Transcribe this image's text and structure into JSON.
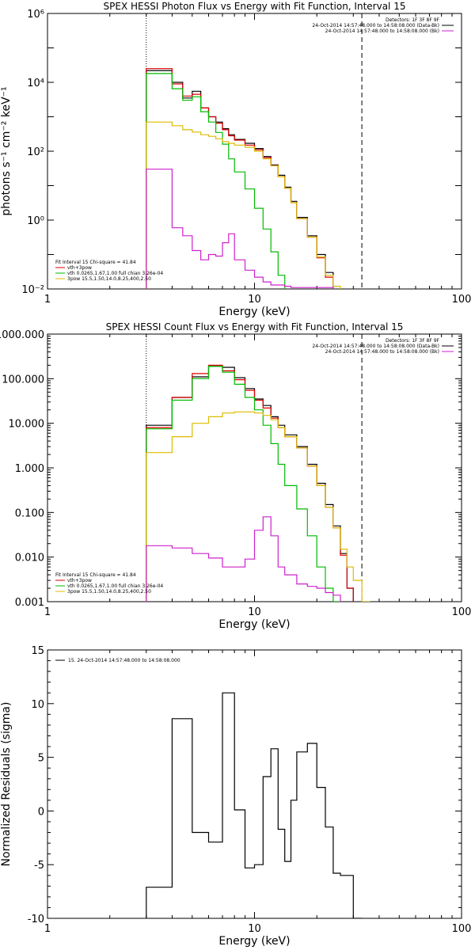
{
  "chart_data": [
    {
      "type": "line",
      "title": "SPEX HESSI Photon Flux vs Energy with Fit Function, Interval 15",
      "xlabel": "Energy (keV)",
      "ylabel": "photons s⁻¹ cm⁻² keV⁻¹",
      "xscale": "log",
      "yscale": "log",
      "xlim": [
        1,
        100
      ],
      "ylim": [
        0.01,
        1000000
      ],
      "xticks": [
        1,
        10,
        100
      ],
      "xtick_labels": [
        "1",
        "10",
        "100"
      ],
      "yticks": [
        0.01,
        1,
        100,
        10000,
        1000000
      ],
      "ytick_labels": [
        "10⁻²",
        "10⁰",
        "10²",
        "10⁴",
        "10⁶"
      ],
      "vlines": [
        {
          "x": 3.0,
          "style": "dotted"
        },
        {
          "x": 33.0,
          "style": "dashed"
        }
      ],
      "legend_top": {
        "header": "Detectors: 1F 3F 8F 9F",
        "items": [
          {
            "text": "24-Oct-2014 14:57:48.000 to 14:58:08.000 (Data-Bk)",
            "color": "#000000"
          },
          {
            "text": "24-Oct-2014 14:57:48.000 to 14:58:08.000 (Bk)",
            "color": "#cc22cc"
          }
        ]
      },
      "legend_bottom": {
        "header": "Fit Interval 15   Chi-square = 41.84",
        "items": [
          {
            "text": "vth+3pow",
            "color": "#dd0000"
          },
          {
            "text": "vth 0.0265,1.67,1.00  full chian 3.26e-04",
            "color": "#00bb00"
          },
          {
            "text": "3pow 15.5,1.50,14.0,8.25,400,2.50",
            "color": "#ddbb00"
          }
        ]
      },
      "edges": [
        3.0,
        3.5,
        4.0,
        4.5,
        5.0,
        5.5,
        6.0,
        6.5,
        7.0,
        7.5,
        8.0,
        9.0,
        10.0,
        11.0,
        12.0,
        13.0,
        14.0,
        15.0,
        16.0,
        18.0,
        20.0,
        22.0,
        24.0,
        26.0,
        28.0,
        30.0,
        33.0,
        36.0,
        40.0,
        45.0,
        50.0
      ],
      "series": [
        {
          "color": "#000000",
          "values": [
            22000,
            22000,
            10000,
            3500,
            5500,
            1800,
            1000,
            700,
            450,
            300,
            220,
            170,
            120,
            70,
            40,
            20,
            9,
            3.5,
            1.2,
            0.35,
            0.1,
            0.03,
            null,
            null,
            null,
            null,
            null,
            null,
            null,
            null
          ]
        },
        {
          "color": "#dd0000",
          "values": [
            25000,
            25000,
            9000,
            4000,
            4500,
            1800,
            1000,
            650,
            420,
            280,
            210,
            150,
            110,
            65,
            38,
            18,
            8.5,
            3.2,
            1.1,
            0.32,
            0.08,
            0.022,
            null,
            null,
            null,
            null,
            null,
            null,
            null,
            null
          ]
        },
        {
          "color": "#00bb00",
          "values": [
            18000,
            18000,
            6500,
            3000,
            3800,
            1400,
            700,
            350,
            160,
            60,
            25,
            8,
            2.2,
            0.55,
            0.12,
            0.025,
            null,
            null,
            null,
            null,
            null,
            null,
            null,
            null,
            null,
            null,
            null,
            null,
            null,
            null
          ]
        },
        {
          "color": "#ddbb00",
          "values": [
            700,
            700,
            550,
            420,
            360,
            300,
            270,
            230,
            190,
            170,
            150,
            130,
            100,
            60,
            38,
            18,
            8.5,
            3.2,
            1.1,
            0.32,
            0.085,
            0.025,
            0.012,
            null,
            null,
            null,
            null,
            null,
            null,
            null
          ]
        },
        {
          "color": "#cc22cc",
          "values": [
            30,
            30,
            0.6,
            0.35,
            0.13,
            0.07,
            0.1,
            0.09,
            0.22,
            0.4,
            0.07,
            0.035,
            0.022,
            0.016,
            0.013,
            0.013,
            0.012,
            0.011,
            0.011,
            0.011,
            0.011,
            0.011,
            null,
            null,
            null,
            null,
            null,
            null,
            null,
            null
          ]
        }
      ]
    },
    {
      "type": "line",
      "title": "SPEX HESSI Count Flux vs Energy with Fit Function, Interval 15",
      "xlabel": "Energy (keV)",
      "ylabel": "",
      "xscale": "log",
      "yscale": "log",
      "xlim": [
        1,
        100
      ],
      "ylim": [
        0.001,
        1000
      ],
      "xticks": [
        1,
        10,
        100
      ],
      "xtick_labels": [
        "1",
        "10",
        "100"
      ],
      "yticks": [
        0.001,
        0.01,
        0.1,
        1,
        10,
        100,
        1000
      ],
      "ytick_labels": [
        "0.001",
        "0.010",
        "0.100",
        "1.000",
        "10.000",
        "100.000",
        "1000.000"
      ],
      "vlines": [
        {
          "x": 3.0,
          "style": "dotted"
        },
        {
          "x": 33.0,
          "style": "dashed"
        }
      ],
      "legend_top": {
        "header": "Detectors: 1F 3F 8F 9F",
        "items": [
          {
            "text": "24-Oct-2014 14:57:48.000 to 14:58:08.000 (Data-Bk)",
            "color": "#000000"
          },
          {
            "text": "24-Oct-2014 14:57:48.000 to 14:58:08.000 (Bk)",
            "color": "#cc22cc"
          }
        ]
      },
      "legend_bottom": {
        "header": "Fit Interval 15   Chi-square = 41.84",
        "items": [
          {
            "text": "vth+3pow",
            "color": "#dd0000"
          },
          {
            "text": "vth 0.0265,1.67,1.00  full chian 3.26e-04",
            "color": "#00bb00"
          },
          {
            "text": "3pow 15.5,1.50,14.0,8.25,400,2.50",
            "color": "#ddbb00"
          }
        ]
      },
      "edges": [
        3.0,
        4.0,
        5.0,
        6.0,
        7.0,
        8.0,
        9.0,
        10.0,
        11.0,
        12.0,
        13.0,
        14.0,
        16.0,
        18.0,
        20.0,
        22.0,
        24.0,
        26.0,
        28.0,
        30.0,
        33.0,
        36.0,
        40.0,
        45.0
      ],
      "series": [
        {
          "color": "#000000",
          "values": [
            9,
            38,
            110,
            190,
            180,
            105,
            60,
            35,
            25,
            14,
            9,
            5.5,
            3,
            1.2,
            0.45,
            0.15,
            0.05,
            0.012,
            0.002,
            null,
            null,
            null,
            null
          ]
        },
        {
          "color": "#dd0000",
          "values": [
            8,
            38,
            130,
            200,
            150,
            95,
            55,
            33,
            22,
            13,
            8,
            5,
            2.8,
            1.1,
            0.4,
            0.13,
            0.045,
            0.011,
            0.002,
            null,
            null,
            null,
            null
          ]
        },
        {
          "color": "#00bb00",
          "values": [
            7.5,
            33,
            100,
            190,
            140,
            75,
            38,
            20,
            9,
            3.5,
            1.2,
            0.4,
            0.12,
            0.03,
            0.006,
            0.002,
            0.001,
            null,
            null,
            null,
            null,
            null,
            null
          ]
        },
        {
          "color": "#ddbb00",
          "values": [
            2.2,
            5,
            10,
            14,
            17,
            18,
            18,
            17,
            15,
            12,
            8,
            5,
            2.8,
            1.1,
            0.4,
            0.13,
            0.045,
            0.015,
            0.006,
            0.003,
            0.001,
            null,
            null
          ]
        },
        {
          "color": "#cc22cc",
          "values": [
            0.018,
            0.016,
            0.012,
            0.0095,
            0.006,
            0.006,
            0.009,
            0.04,
            0.08,
            0.03,
            0.006,
            0.004,
            0.0025,
            0.0022,
            0.002,
            0.0016,
            0.0014,
            null,
            null,
            null,
            null,
            null,
            null
          ]
        }
      ]
    },
    {
      "type": "line",
      "title": "",
      "xlabel": "Energy (keV)",
      "ylabel": "Normalized Residuals (sigma)",
      "xscale": "log",
      "yscale": "linear",
      "xlim": [
        1,
        100
      ],
      "ylim": [
        -10,
        15
      ],
      "xticks": [
        1,
        10,
        100
      ],
      "xtick_labels": [
        "1",
        "10",
        "100"
      ],
      "yticks": [
        -10,
        -5,
        0,
        5,
        10,
        15
      ],
      "ytick_labels": [
        "-10",
        "-5",
        "0",
        "5",
        "10",
        "15"
      ],
      "legend_top": {
        "items": [
          {
            "text": "15. 24-Oct-2014 14:57:48.000 to 14:58:08.000",
            "color": "#000000"
          }
        ]
      },
      "edges": [
        3.0,
        4.0,
        5.0,
        6.0,
        7.0,
        8.0,
        9.0,
        10.0,
        11.0,
        12.0,
        13.0,
        14.0,
        15.0,
        16.0,
        18.0,
        20.0,
        22.0,
        24.0,
        26.0,
        28.0,
        30.0,
        33.0
      ],
      "series": [
        {
          "color": "#000000",
          "values": [
            -7.1,
            8.6,
            -2.0,
            -2.9,
            11.0,
            0.1,
            -5.3,
            -5.0,
            3.2,
            5.8,
            -1.7,
            -4.7,
            1.0,
            5.5,
            6.3,
            2.2,
            -1.5,
            -5.8,
            -6.0,
            -6.0,
            -10.0
          ]
        }
      ]
    }
  ]
}
